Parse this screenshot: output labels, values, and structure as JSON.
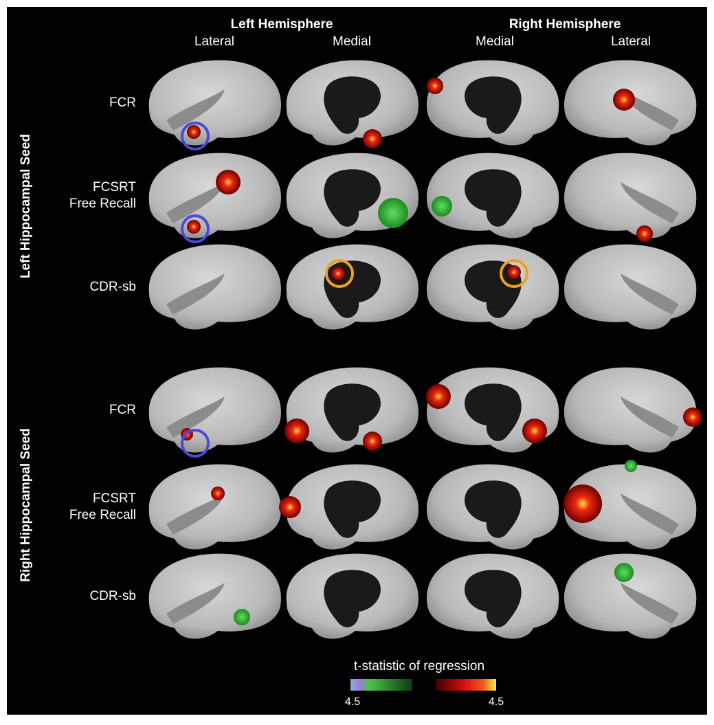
{
  "header": {
    "groups": [
      {
        "title": "Left Hemisphere",
        "views": [
          "Lateral",
          "Medial"
        ]
      },
      {
        "title": "Right Hemisphere",
        "views": [
          "Medial",
          "Lateral"
        ]
      }
    ]
  },
  "seeds": [
    {
      "label": "Left Hippocampal Seed",
      "rows": [
        {
          "lines": [
            "FCR"
          ]
        },
        {
          "lines": [
            "FCSRT",
            "Free Recall"
          ]
        },
        {
          "lines": [
            "CDR-sb"
          ]
        }
      ]
    },
    {
      "label": "Right Hippocampal Seed",
      "rows": [
        {
          "lines": [
            "FCR"
          ]
        },
        {
          "lines": [
            "FCSRT",
            "Free Recall"
          ]
        },
        {
          "lines": [
            "CDR-sb"
          ]
        }
      ]
    }
  ],
  "colorbar": {
    "title": "t-statistic of regression",
    "left_label": "4.5",
    "right_label": "4.5"
  }
}
